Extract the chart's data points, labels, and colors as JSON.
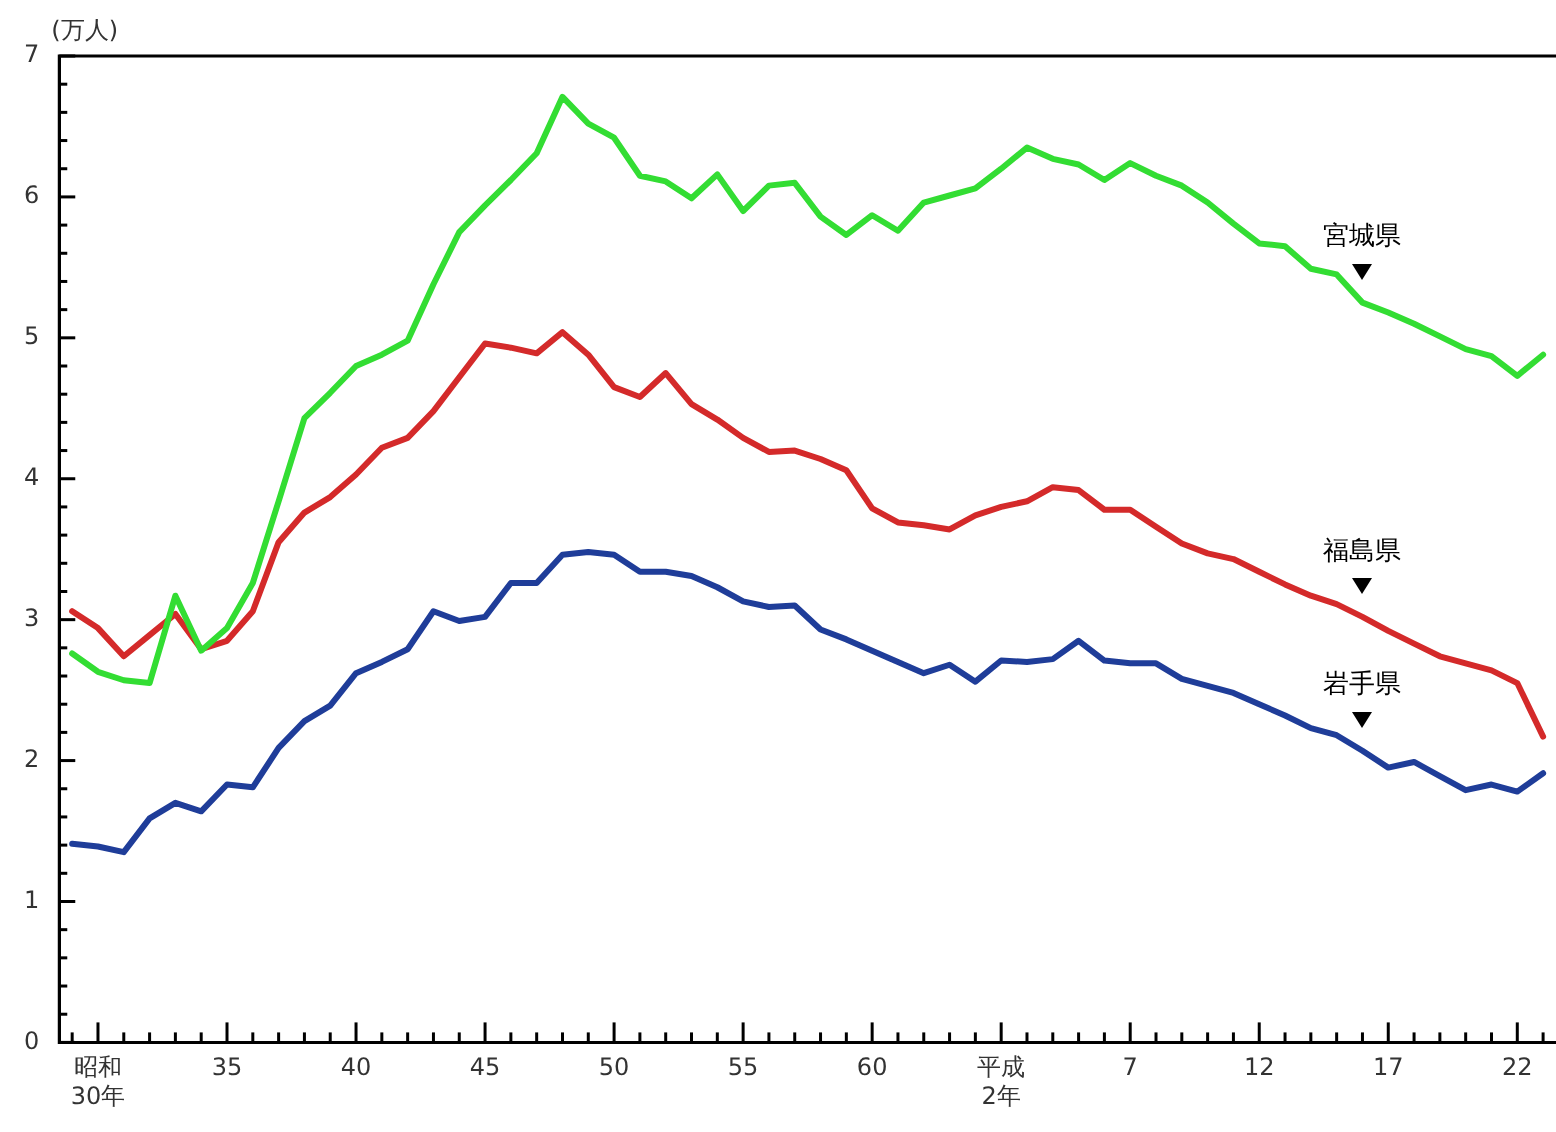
{
  "chart_data": {
    "type": "line",
    "ylabel": "(万人)",
    "categories": [
      null,
      "昭和\n30年",
      null,
      null,
      null,
      null,
      "35",
      null,
      null,
      null,
      null,
      "40",
      null,
      null,
      null,
      null,
      "45",
      null,
      null,
      null,
      null,
      "50",
      null,
      null,
      null,
      null,
      "55",
      null,
      null,
      null,
      null,
      "60",
      null,
      null,
      null,
      null,
      "平成\n2年",
      null,
      null,
      null,
      null,
      "7",
      null,
      null,
      null,
      null,
      "12",
      null,
      null,
      null,
      null,
      "17",
      null,
      null,
      null,
      null,
      "22",
      null
    ],
    "series": [
      {
        "name": "宮城県",
        "color": "#33dd33",
        "values": [
          2.76,
          2.63,
          2.57,
          2.55,
          3.17,
          2.78,
          2.94,
          3.26,
          3.84,
          4.43,
          4.61,
          4.8,
          4.88,
          4.98,
          5.38,
          5.75,
          5.94,
          6.12,
          6.31,
          6.71,
          6.52,
          6.42,
          6.15,
          6.11,
          5.99,
          6.16,
          5.9,
          6.08,
          6.1,
          5.86,
          5.73,
          5.87,
          5.76,
          5.96,
          6.01,
          6.06,
          6.2,
          6.35,
          6.27,
          6.23,
          6.12,
          6.24,
          6.15,
          6.08,
          5.96,
          5.81,
          5.67,
          5.65,
          5.49,
          5.45,
          5.25,
          5.18,
          5.1,
          5.01,
          4.92,
          4.87,
          4.73,
          4.88
        ]
      },
      {
        "name": "福島県",
        "color": "#d42a2a",
        "values": [
          3.06,
          2.94,
          2.74,
          2.89,
          3.04,
          2.79,
          2.85,
          3.06,
          3.55,
          3.76,
          3.87,
          4.03,
          4.22,
          4.29,
          4.48,
          4.72,
          4.96,
          4.93,
          4.89,
          5.04,
          4.88,
          4.65,
          4.58,
          4.75,
          4.53,
          4.42,
          4.29,
          4.19,
          4.2,
          4.14,
          4.06,
          3.79,
          3.69,
          3.67,
          3.64,
          3.74,
          3.8,
          3.84,
          3.94,
          3.92,
          3.78,
          3.78,
          3.66,
          3.54,
          3.47,
          3.43,
          3.34,
          3.25,
          3.17,
          3.11,
          3.02,
          2.92,
          2.83,
          2.74,
          2.69,
          2.64,
          2.55,
          2.17
        ]
      },
      {
        "name": "岩手県",
        "color": "#1f3d99",
        "values": [
          1.41,
          1.39,
          1.35,
          1.59,
          1.7,
          1.64,
          1.83,
          1.81,
          2.09,
          2.28,
          2.39,
          2.62,
          2.7,
          2.79,
          3.06,
          2.99,
          3.02,
          3.26,
          3.26,
          3.46,
          3.48,
          3.46,
          3.34,
          3.34,
          3.31,
          3.23,
          3.13,
          3.09,
          3.1,
          2.93,
          2.86,
          2.78,
          2.7,
          2.62,
          2.68,
          2.56,
          2.71,
          2.7,
          2.72,
          2.85,
          2.71,
          2.69,
          2.69,
          2.58,
          2.53,
          2.48,
          2.4,
          2.32,
          2.23,
          2.18,
          2.07,
          1.95,
          1.99,
          1.89,
          1.79,
          1.83,
          1.78,
          1.91
        ]
      }
    ],
    "ylim": [
      0,
      7
    ],
    "yticks": [
      0,
      {
        "value": 0.2,
        "label": null
      },
      {
        "value": 0.4,
        "label": null
      },
      {
        "value": 0.6,
        "label": null
      },
      {
        "value": 0.8,
        "label": null
      },
      1,
      {
        "value": 1.2,
        "label": null
      },
      {
        "value": 1.4,
        "label": null
      },
      {
        "value": 1.6,
        "label": null
      },
      {
        "value": 1.8,
        "label": null
      },
      2,
      {
        "value": 2.2,
        "label": null
      },
      {
        "value": 2.4,
        "label": null
      },
      {
        "value": 2.6,
        "label": null
      },
      {
        "value": 2.8,
        "label": null
      },
      3,
      {
        "value": 3.2,
        "label": null
      },
      {
        "value": 3.4,
        "label": null
      },
      {
        "value": 3.6,
        "label": null
      },
      {
        "value": 3.8,
        "label": null
      },
      4,
      {
        "value": 4.2,
        "label": null
      },
      {
        "value": 4.4,
        "label": null
      },
      {
        "value": 4.6,
        "label": null
      },
      {
        "value": 4.8,
        "label": null
      },
      5,
      {
        "value": 5.2,
        "label": null
      },
      {
        "value": 5.4,
        "label": null
      },
      {
        "value": 5.6,
        "label": null
      },
      {
        "value": 5.8,
        "label": null
      },
      6,
      {
        "value": 6.2,
        "label": null
      },
      {
        "value": 6.4,
        "label": null
      },
      {
        "value": 6.6,
        "label": null
      },
      {
        "value": 6.8,
        "label": null
      },
      7
    ],
    "grid": false,
    "legend": false,
    "marker": "none",
    "line_style": "solid"
  }
}
